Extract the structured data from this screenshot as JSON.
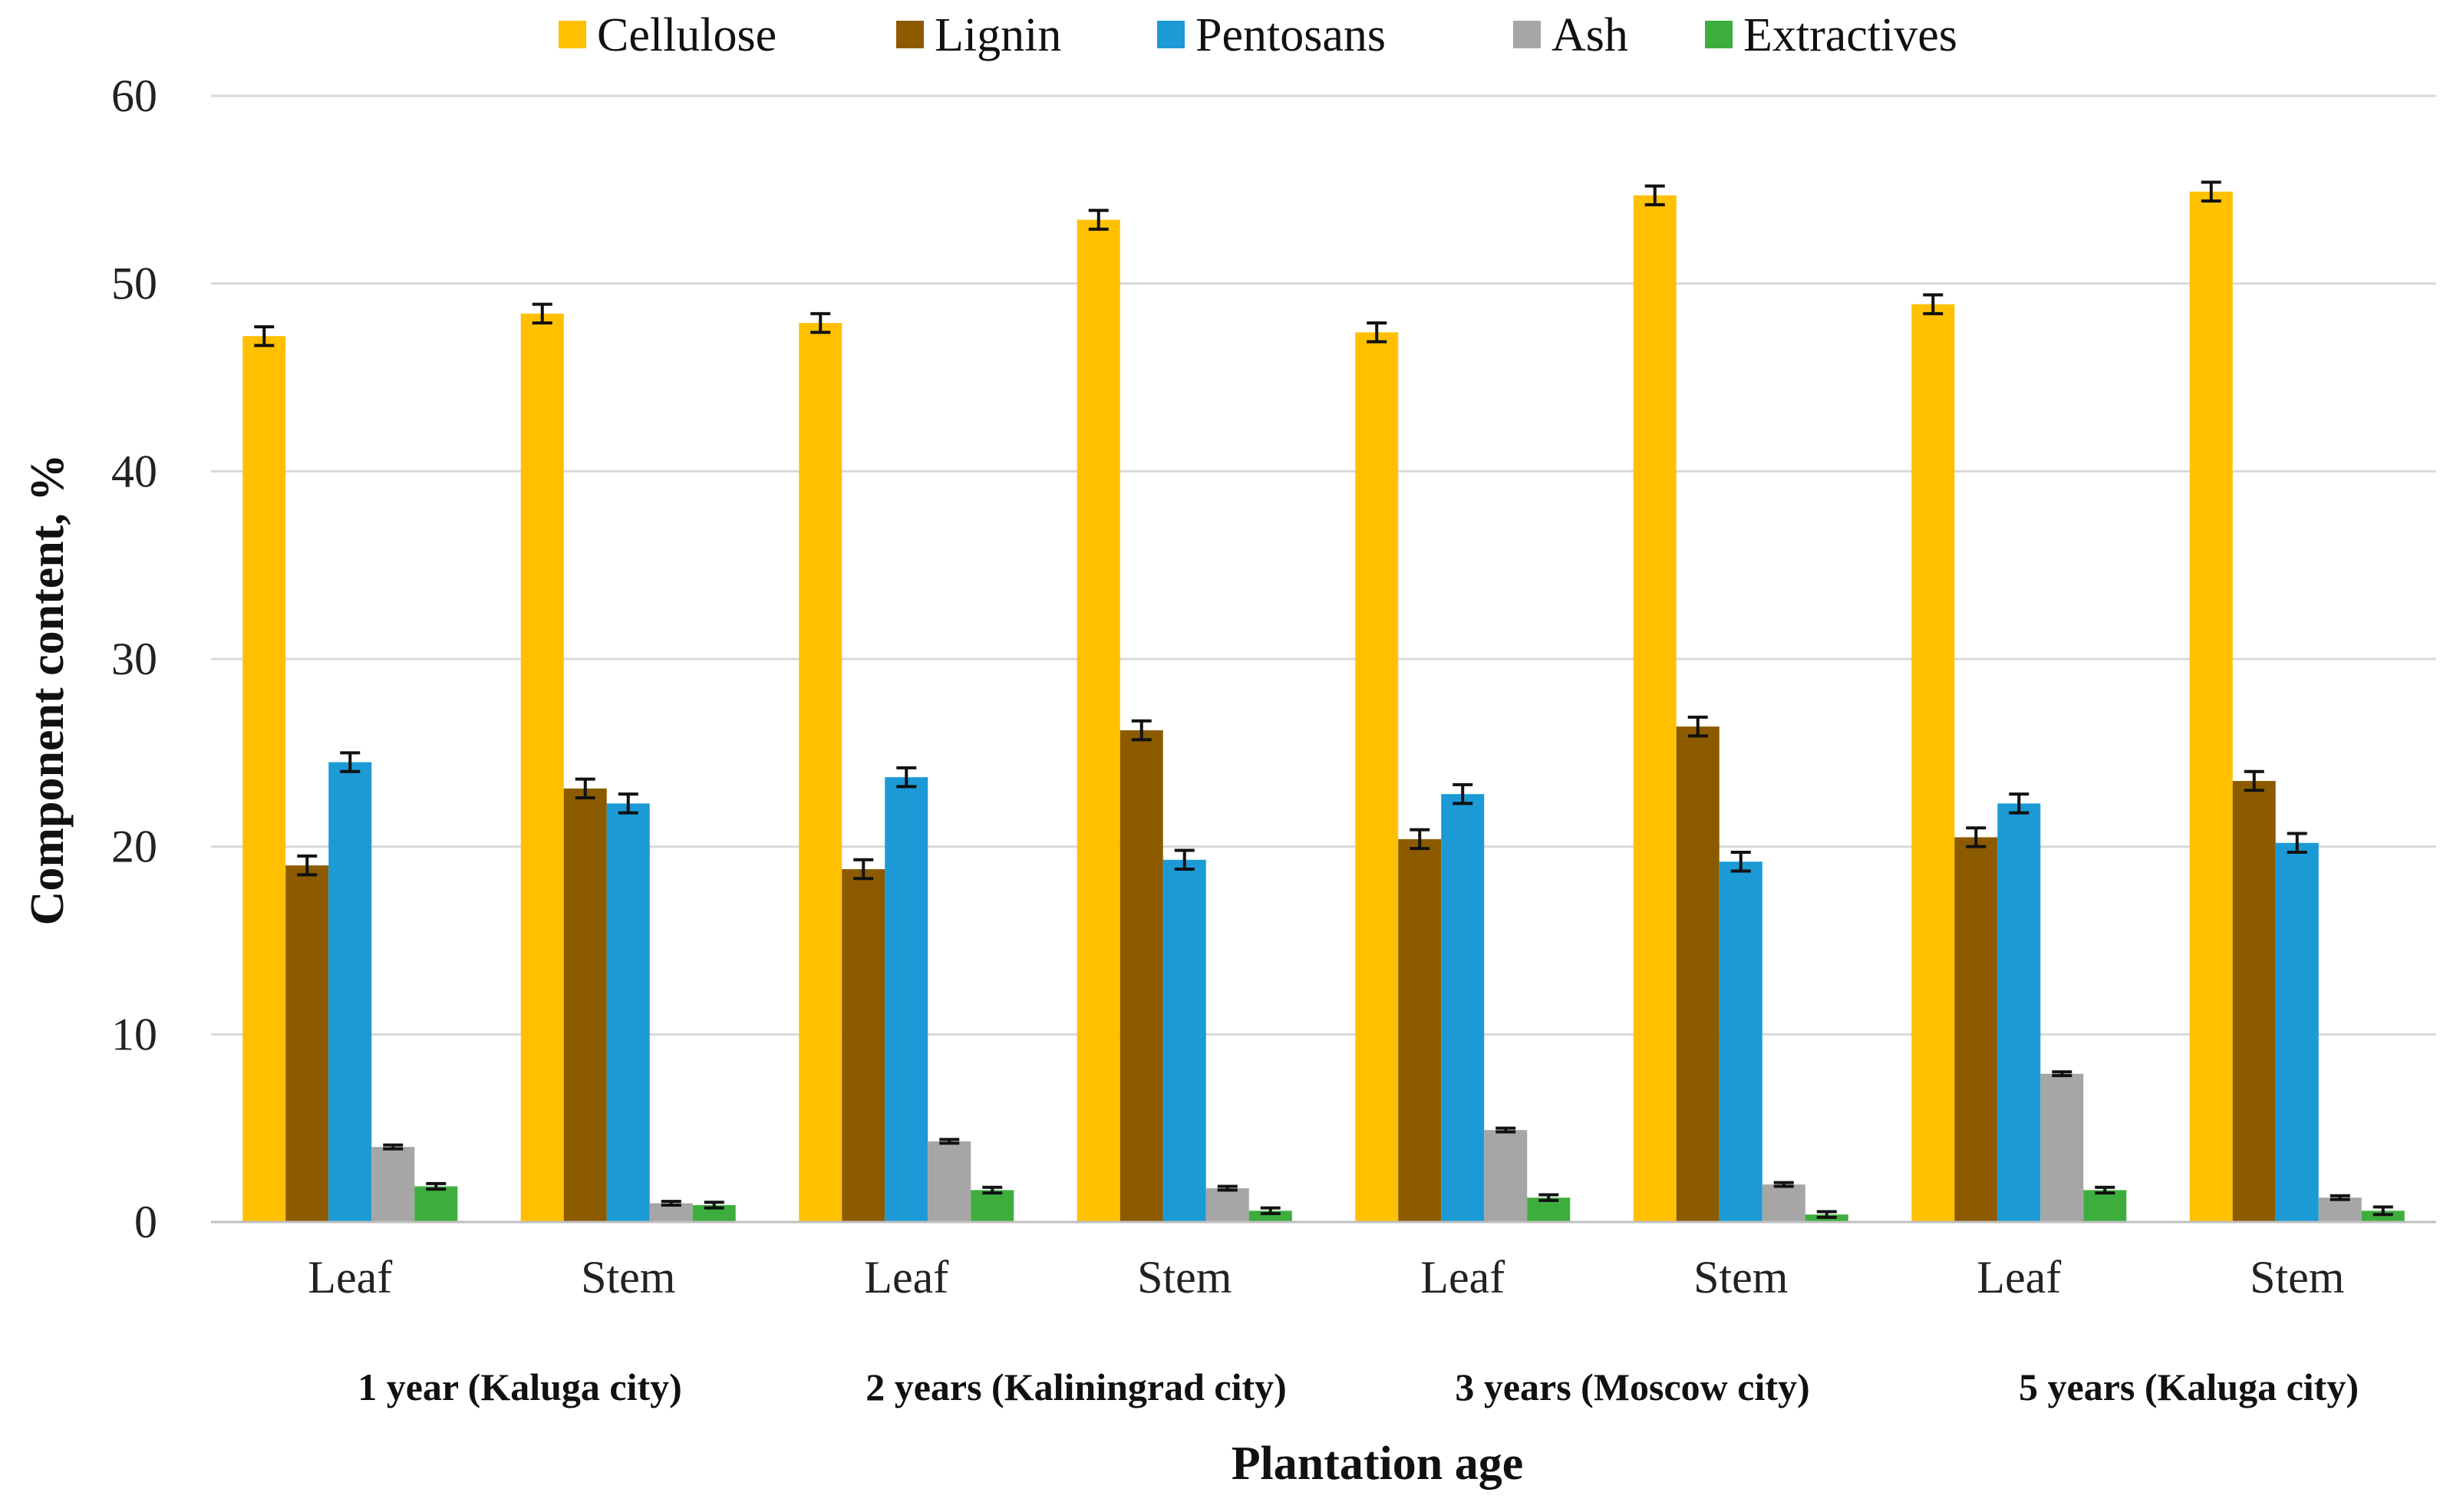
{
  "chart_data": {
    "type": "bar",
    "title": "",
    "xlabel": "Plantation age",
    "ylabel": "Component content, %",
    "ylim": [
      0,
      60
    ],
    "yticks": [
      0,
      10,
      20,
      30,
      40,
      50,
      60
    ],
    "grid": true,
    "legend_position": "top",
    "categories": [
      "Leaf",
      "Stem",
      "Leaf",
      "Stem",
      "Leaf",
      "Stem",
      "Leaf",
      "Stem"
    ],
    "groups": [
      {
        "label": "1 year (Kaluga city)",
        "categories": [
          "Leaf",
          "Stem"
        ]
      },
      {
        "label": "2 years (Kaliningrad city)",
        "categories": [
          "Leaf",
          "Stem"
        ]
      },
      {
        "label": "3 years (Moscow city)",
        "categories": [
          "Leaf",
          "Stem"
        ]
      },
      {
        "label": "5 years (Kaluga city)",
        "categories": [
          "Leaf",
          "Stem"
        ]
      }
    ],
    "series": [
      {
        "name": "Cellulose",
        "color": "#FFC000",
        "values": [
          47.2,
          48.4,
          47.9,
          53.4,
          47.4,
          54.7,
          48.9,
          54.9
        ],
        "errors": [
          0.5,
          0.5,
          0.5,
          0.5,
          0.5,
          0.5,
          0.5,
          0.5
        ]
      },
      {
        "name": "Lignin",
        "color": "#8C5B00",
        "values": [
          19.0,
          23.1,
          18.8,
          26.2,
          20.4,
          26.4,
          20.5,
          23.5
        ],
        "errors": [
          0.5,
          0.5,
          0.5,
          0.5,
          0.5,
          0.5,
          0.5,
          0.5
        ]
      },
      {
        "name": "Pentosans",
        "color": "#1B9AD6",
        "values": [
          24.5,
          22.3,
          23.7,
          19.3,
          22.8,
          19.2,
          22.3,
          20.2
        ],
        "errors": [
          0.5,
          0.5,
          0.5,
          0.5,
          0.5,
          0.5,
          0.5,
          0.5
        ]
      },
      {
        "name": "Ash",
        "color": "#A6A6A6",
        "values": [
          4.0,
          1.0,
          4.3,
          1.8,
          4.9,
          2.0,
          7.9,
          1.3
        ],
        "errors": [
          0.1,
          0.1,
          0.1,
          0.1,
          0.1,
          0.1,
          0.1,
          0.1
        ]
      },
      {
        "name": "Extractives",
        "color": "#3DAE3D",
        "values": [
          1.9,
          0.9,
          1.7,
          0.6,
          1.3,
          0.4,
          1.7,
          0.6
        ],
        "errors": [
          0.15,
          0.15,
          0.15,
          0.15,
          0.15,
          0.15,
          0.15,
          0.2
        ]
      }
    ]
  }
}
